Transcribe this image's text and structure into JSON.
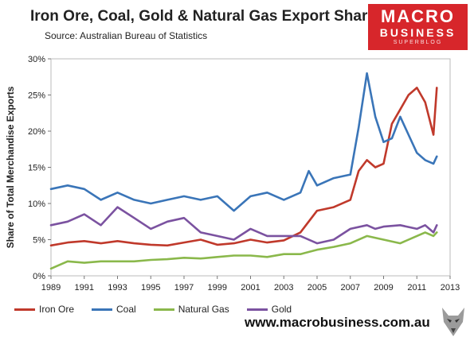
{
  "header": {
    "title": "Iron Ore, Coal, Gold & Natural Gas Export Share",
    "source": "Source:  Australian Bureau of Statistics"
  },
  "logo": {
    "line1": "MACRO",
    "line2": "BUSINESS",
    "line3": "SUPERBLOG"
  },
  "footer": {
    "url": "www.macrobusiness.com.au"
  },
  "chart_data": {
    "type": "line",
    "title": "Iron Ore, Coal, Gold & Natural Gas Export Share",
    "ylabel": "Share of Total Merchandise Exports",
    "xlabel": "",
    "xlim": [
      1989,
      2013
    ],
    "ylim": [
      0,
      30
    ],
    "x_ticks": [
      "1989",
      "1991",
      "1993",
      "1995",
      "1997",
      "1999",
      "2001",
      "2003",
      "2005",
      "2007",
      "2009",
      "2011",
      "2013"
    ],
    "y_ticks": [
      "0%",
      "5%",
      "10%",
      "15%",
      "20%",
      "25%",
      "30%"
    ],
    "grid": false,
    "legend_position": "bottom-left",
    "series": [
      {
        "name": "Iron Ore",
        "color": "#c0392b",
        "x": [
          1989,
          1990,
          1991,
          1992,
          1993,
          1994,
          1995,
          1996,
          1997,
          1998,
          1999,
          2000,
          2001,
          2002,
          2003,
          2004,
          2005,
          2006,
          2007,
          2007.5,
          2008,
          2008.5,
          2009,
          2009.5,
          2010,
          2010.5,
          2011,
          2011.5,
          2012,
          2012.2
        ],
        "y": [
          4.2,
          4.6,
          4.8,
          4.5,
          4.8,
          4.5,
          4.3,
          4.2,
          4.6,
          5.0,
          4.3,
          4.5,
          5.0,
          4.6,
          4.9,
          6.0,
          9.0,
          9.5,
          10.5,
          14.5,
          16.0,
          15.0,
          15.5,
          21.0,
          23.0,
          25.0,
          26.0,
          24.0,
          19.5,
          26.0
        ]
      },
      {
        "name": "Coal",
        "color": "#3a75b8",
        "x": [
          1989,
          1990,
          1991,
          1992,
          1993,
          1994,
          1995,
          1996,
          1997,
          1998,
          1999,
          2000,
          2001,
          2002,
          2003,
          2004,
          2004.5,
          2005,
          2006,
          2007,
          2007.5,
          2008,
          2008.5,
          2009,
          2009.5,
          2010,
          2010.5,
          2011,
          2011.5,
          2012,
          2012.2
        ],
        "y": [
          12.0,
          12.5,
          12.0,
          10.5,
          11.5,
          10.5,
          10.0,
          10.5,
          11.0,
          10.5,
          11.0,
          9.0,
          11.0,
          11.5,
          10.5,
          11.5,
          14.5,
          12.5,
          13.5,
          14.0,
          20.5,
          28.0,
          22.0,
          18.5,
          19.0,
          22.0,
          19.5,
          17.0,
          16.0,
          15.5,
          16.5
        ]
      },
      {
        "name": "Natural Gas",
        "color": "#8ab84b",
        "x": [
          1989,
          1990,
          1991,
          1992,
          1993,
          1994,
          1995,
          1996,
          1997,
          1998,
          1999,
          2000,
          2001,
          2002,
          2003,
          2004,
          2005,
          2006,
          2007,
          2008,
          2009,
          2010,
          2011,
          2011.5,
          2012,
          2012.2
        ],
        "y": [
          1.0,
          2.0,
          1.8,
          2.0,
          2.0,
          2.0,
          2.2,
          2.3,
          2.5,
          2.4,
          2.6,
          2.8,
          2.8,
          2.6,
          3.0,
          3.0,
          3.6,
          4.0,
          4.5,
          5.5,
          5.0,
          4.5,
          5.5,
          6.0,
          5.5,
          6.0
        ]
      },
      {
        "name": "Gold",
        "color": "#7b52a0",
        "x": [
          1989,
          1990,
          1991,
          1992,
          1993,
          1994,
          1995,
          1996,
          1997,
          1998,
          1999,
          2000,
          2001,
          2002,
          2003,
          2004,
          2005,
          2006,
          2007,
          2008,
          2008.5,
          2009,
          2010,
          2011,
          2011.5,
          2012,
          2012.2
        ],
        "y": [
          7.0,
          7.5,
          8.5,
          7.0,
          9.5,
          8.0,
          6.5,
          7.5,
          8.0,
          6.0,
          5.5,
          5.0,
          6.5,
          5.5,
          5.5,
          5.5,
          4.5,
          5.0,
          6.5,
          7.0,
          6.5,
          6.8,
          7.0,
          6.5,
          7.0,
          6.0,
          7.0
        ]
      }
    ]
  }
}
